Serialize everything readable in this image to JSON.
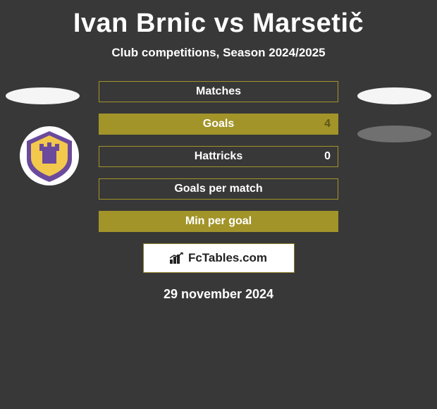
{
  "title": "Ivan Brnic vs Marsetič",
  "subtitle": "Club competitions, Season 2024/2025",
  "date": "29 november 2024",
  "branding": "FcTables.com",
  "colors": {
    "background": "#383838",
    "border_olive": "#a29429",
    "fill_olive": "#a29429",
    "ellipse_white": "#f5f5f5",
    "ellipse_gray": "#707070",
    "text": "#ffffff",
    "value_olive": "#5e5616"
  },
  "stats": [
    {
      "label": "Matches",
      "right_value": "",
      "border_color": "#a29429",
      "fill_pct": 0,
      "fill_side": "none",
      "fill_color": "#a29429"
    },
    {
      "label": "Goals",
      "right_value": "4",
      "border_color": "#a29429",
      "fill_pct": 100,
      "fill_side": "full",
      "fill_color": "#a29429",
      "value_color": "#5e5616"
    },
    {
      "label": "Hattricks",
      "right_value": "0",
      "border_color": "#a29429",
      "fill_pct": 0,
      "fill_side": "none",
      "fill_color": "#a29429",
      "value_color": "#ffffff"
    },
    {
      "label": "Goals per match",
      "right_value": "",
      "border_color": "#a29429",
      "fill_pct": 0,
      "fill_side": "none",
      "fill_color": "#a29429"
    },
    {
      "label": "Min per goal",
      "right_value": "",
      "border_color": "#a29429",
      "fill_pct": 100,
      "fill_side": "full",
      "fill_color": "#a29429"
    }
  ],
  "badge": {
    "bg_color": "#ffffff",
    "shield_color": "#6b4a9c",
    "accent_color": "#f2c94c"
  }
}
